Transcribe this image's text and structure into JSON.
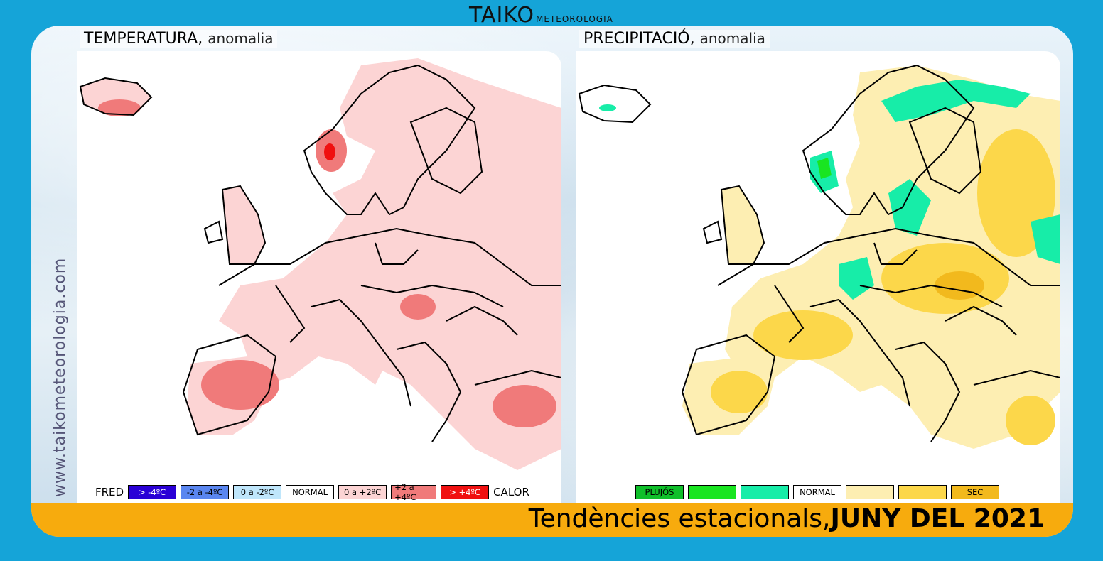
{
  "brand": {
    "name": "TAIKO",
    "suffix": "METEOROLOGIA"
  },
  "side_url": "www.taikometeorologia.com",
  "temperature": {
    "title": "TEMPERATURA,",
    "subtitle": "anomalia",
    "legend": {
      "left_label": "FRED",
      "right_label": "CALOR",
      "items": [
        {
          "label": "> -4ºC",
          "color": "#2a00d6",
          "text_color": "#ffffff"
        },
        {
          "label": "-2 a -4ºC",
          "color": "#5a86f0",
          "text_color": "#000000"
        },
        {
          "label": "0 a -2ºC",
          "color": "#bfe6fb",
          "text_color": "#000000"
        },
        {
          "label": "NORMAL",
          "color": "#ffffff",
          "text_color": "#000000"
        },
        {
          "label": "0 a +2ºC",
          "color": "#fcd4d4",
          "text_color": "#000000"
        },
        {
          "label": "+2 a +4ºC",
          "color": "#f07a7a",
          "text_color": "#000000"
        },
        {
          "label": "> +4ºC",
          "color": "#f01010",
          "text_color": "#ffffff"
        }
      ]
    }
  },
  "precipitation": {
    "title": "PRECIPITACIÓ,",
    "subtitle": "anomalia",
    "legend": {
      "items": [
        {
          "label": "PLUJÓS",
          "color": "#0fbf2a",
          "text_color": "#000000"
        },
        {
          "label": "",
          "color": "#19e521",
          "text_color": "#000000"
        },
        {
          "label": "",
          "color": "#17eda8",
          "text_color": "#000000"
        },
        {
          "label": "NORMAL",
          "color": "#ffffff",
          "text_color": "#000000"
        },
        {
          "label": "",
          "color": "#fdeeb2",
          "text_color": "#000000"
        },
        {
          "label": "",
          "color": "#fcd74a",
          "text_color": "#000000"
        },
        {
          "label": "SEC",
          "color": "#f2b91d",
          "text_color": "#000000"
        }
      ]
    }
  },
  "footer": {
    "text": "Tendències estacionals,",
    "bold": "JUNY DEL 2021"
  },
  "colors": {
    "frame": "#15a4d8",
    "bar": "#f7ab0d"
  }
}
